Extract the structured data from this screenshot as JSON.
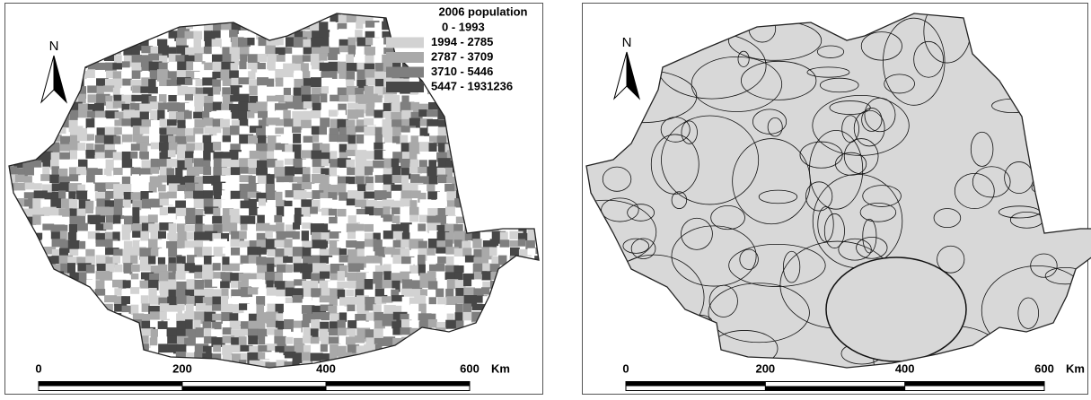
{
  "panels": [
    {
      "north": "N",
      "legend": {
        "title": "2006 population",
        "classes": [
          {
            "label": "0 - 1993",
            "color": "#ffffff"
          },
          {
            "label": "1994 - 2785",
            "color": "#d2d2d2"
          },
          {
            "label": "2787 - 3709",
            "color": "#a9a9a9"
          },
          {
            "label": "3710 - 5446",
            "color": "#7f7f7f"
          },
          {
            "label": "5447 - 1931236",
            "color": "#474747"
          }
        ]
      },
      "scale": {
        "ticks": [
          0,
          200,
          400,
          600
        ],
        "unit": "Km"
      }
    },
    {
      "north": "N",
      "scale": {
        "ticks": [
          0,
          200,
          400,
          600
        ],
        "unit": "Km"
      }
    }
  ]
}
